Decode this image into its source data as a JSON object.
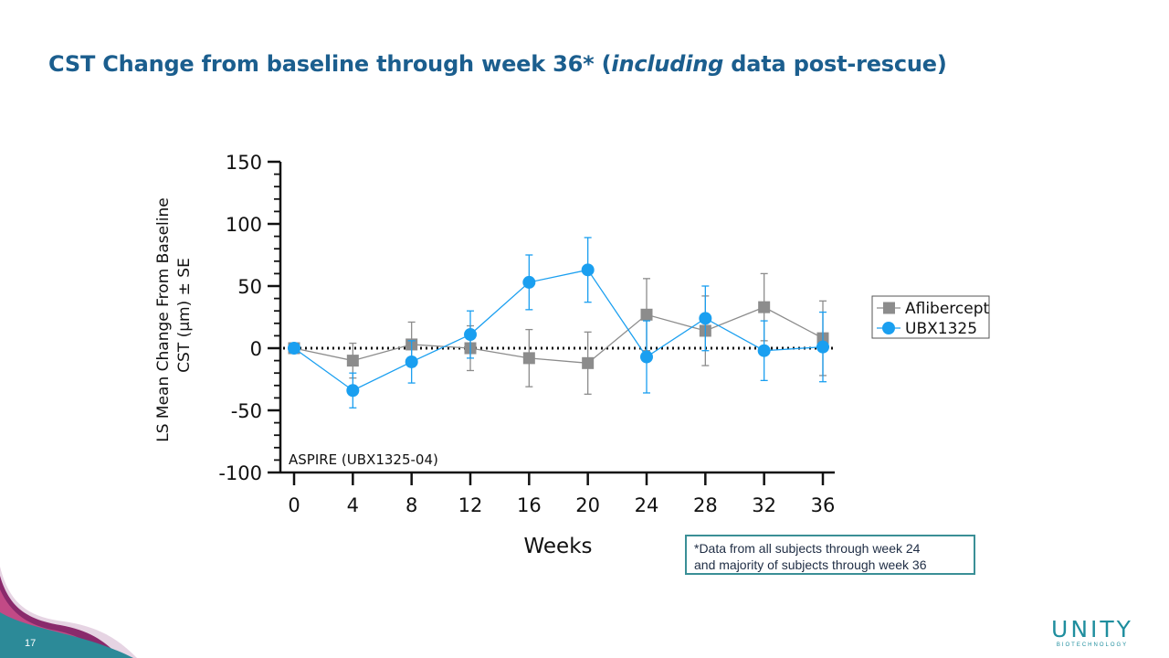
{
  "slide": {
    "title_part1": "CST Change from baseline through week 36* (",
    "title_italic": "including",
    "title_part2": " data post-rescue)",
    "page_number": "17",
    "footnote_line1": "*Data from all subjects through week 24",
    "footnote_line2": "and majority of subjects through week 36",
    "logo_text": "UNITY",
    "logo_subtext": "BIOTECHNOLOGY",
    "colors": {
      "title": "#1b5e8e",
      "accent": "#3a8f96",
      "ubx": "#1a9ff0",
      "aflibercept": "#8c8c8c"
    }
  },
  "chart_data": {
    "type": "line",
    "title": "",
    "annotation": "ASPIRE (UBX1325-04)",
    "xlabel": "Weeks",
    "ylabel_line1": "LS Mean Change From Baseline",
    "ylabel_line2": "CST (µm) ± SE",
    "x": [
      0,
      4,
      8,
      12,
      16,
      20,
      24,
      28,
      32,
      36
    ],
    "xlim": [
      0,
      36
    ],
    "ylim": [
      -100,
      150
    ],
    "yticks": [
      150,
      100,
      50,
      0,
      -50,
      -100
    ],
    "xticks": [
      0,
      4,
      8,
      12,
      16,
      20,
      24,
      28,
      32,
      36
    ],
    "legend_position": "right",
    "series": [
      {
        "name": "Aflibercept",
        "color": "#8c8c8c",
        "marker": "square",
        "values": [
          0,
          -10,
          3,
          0,
          -8,
          -12,
          27,
          14,
          33,
          8
        ],
        "se": [
          0,
          14,
          18,
          18,
          23,
          25,
          29,
          28,
          27,
          30
        ]
      },
      {
        "name": "UBX1325",
        "color": "#1a9ff0",
        "marker": "circle",
        "values": [
          0,
          -34,
          -11,
          11,
          53,
          63,
          -7,
          24,
          -2,
          1
        ],
        "se": [
          0,
          14,
          17,
          19,
          22,
          26,
          29,
          26,
          24,
          28
        ]
      }
    ]
  }
}
